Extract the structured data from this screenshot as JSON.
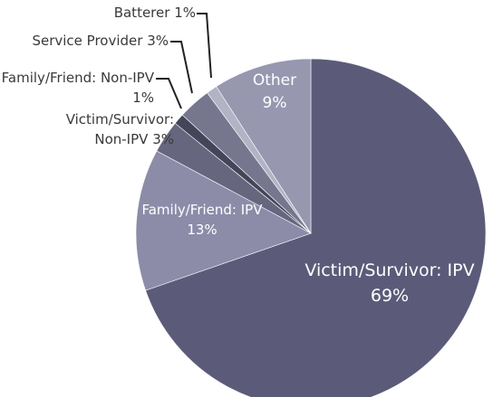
{
  "chart_data": {
    "type": "pie",
    "categories": [
      "Victim/Survivor: IPV",
      "Family/Friend: IPV",
      "Victim/Survivor: Non-IPV",
      "Family/Friend: Non-IPV",
      "Service Provider",
      "Batterer",
      "Other"
    ],
    "values": [
      69,
      13,
      3,
      1,
      3,
      1,
      9
    ],
    "value_labels": [
      "69%",
      "13%",
      "3%",
      "1%",
      "3%",
      "1%",
      "9%"
    ],
    "colors": [
      "#5b5b79",
      "#8c8ca9",
      "#66667f",
      "#45455a",
      "#76768f",
      "#b3b3c6",
      "#9797b0"
    ]
  }
}
